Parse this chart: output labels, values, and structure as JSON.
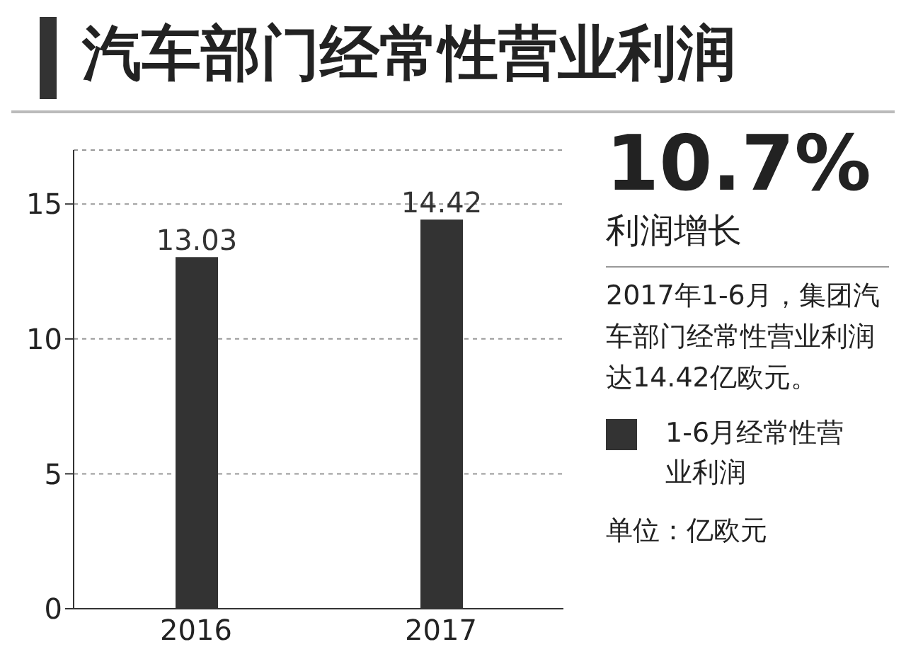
{
  "chart_data": {
    "type": "bar",
    "title": "汽车部门经常性营业利润",
    "categories": [
      "2016",
      "2017"
    ],
    "series": [
      {
        "name": "1-6月经常性营业利润",
        "color": "#333333",
        "values": [
          13.03,
          14.42
        ]
      }
    ],
    "ylim": [
      0,
      17
    ],
    "yticks": [
      0,
      5,
      10,
      15
    ],
    "grid": "y",
    "data_labels": true,
    "legend": "right",
    "annotations": [
      "10.7%",
      "利润增长",
      "2017年1-6月，集团汽车部门经常性营业利润达14.42亿欧元。",
      "单位：亿欧元"
    ]
  }
}
